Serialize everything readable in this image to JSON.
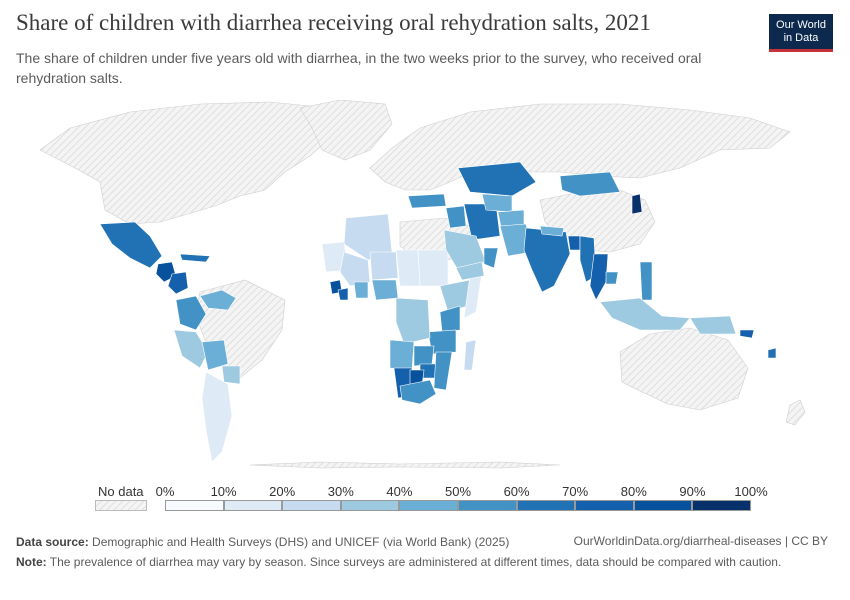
{
  "header": {
    "title": "Share of children with diarrhea receiving oral rehydration salts, 2021",
    "subtitle": "The share of children under five years old with diarrhea, in the two weeks prior to the survey, who received oral rehydration salts."
  },
  "logo": {
    "line1": "Our World",
    "line2": "in Data"
  },
  "legend": {
    "no_data_label": "No data",
    "ticks": [
      "0%",
      "10%",
      "20%",
      "30%",
      "40%",
      "50%",
      "60%",
      "70%",
      "80%",
      "90%",
      "100%"
    ],
    "colors": [
      "#f7fbff",
      "#deebf7",
      "#c6dbef",
      "#9ecae1",
      "#6baed6",
      "#4292c6",
      "#2171b5",
      "#1560ad",
      "#08519c",
      "#08306b"
    ]
  },
  "footer": {
    "source_label": "Data source:",
    "source_text": "Demographic and Health Surveys (DHS) and UNICEF (via World Bank) (2025)",
    "url_text": "OurWorldinData.org/diarrheal-diseases | CC BY",
    "note_label": "Note:",
    "note_text": "The prevalence of diarrhea may vary by season. Since surveys are administered at different times, data should be compared with caution."
  },
  "chart_data": {
    "type": "choropleth",
    "unit": "%",
    "scale_range": [
      0,
      100
    ],
    "no_data_style": "hatched light gray",
    "approximate_values": [
      {
        "region": "Mexico",
        "value": 65
      },
      {
        "region": "Guatemala",
        "value": 85
      },
      {
        "region": "Honduras",
        "value": 70
      },
      {
        "region": "Cuba",
        "value": 60
      },
      {
        "region": "Colombia",
        "value": 50
      },
      {
        "region": "Venezuela",
        "value": 45
      },
      {
        "region": "Peru",
        "value": 30
      },
      {
        "region": "Bolivia",
        "value": 40
      },
      {
        "region": "Paraguay",
        "value": 30
      },
      {
        "region": "Argentina",
        "value": 15
      },
      {
        "region": "Algeria",
        "value": 25
      },
      {
        "region": "Mauritania",
        "value": 15
      },
      {
        "region": "Mali",
        "value": 20
      },
      {
        "region": "Niger",
        "value": 25
      },
      {
        "region": "Chad",
        "value": 15
      },
      {
        "region": "Sudan",
        "value": 15
      },
      {
        "region": "Nigeria",
        "value": 40
      },
      {
        "region": "Ghana",
        "value": 45
      },
      {
        "region": "Sierra Leone",
        "value": 80
      },
      {
        "region": "Liberia",
        "value": 70
      },
      {
        "region": "Ethiopia",
        "value": 30
      },
      {
        "region": "Somalia",
        "value": 10
      },
      {
        "region": "Kenya",
        "value": 55
      },
      {
        "region": "Tanzania",
        "value": 50
      },
      {
        "region": "DR Congo",
        "value": 30
      },
      {
        "region": "Angola",
        "value": 40
      },
      {
        "region": "Zambia",
        "value": 55
      },
      {
        "region": "Zimbabwe",
        "value": 65
      },
      {
        "region": "Mozambique",
        "value": 50
      },
      {
        "region": "Madagascar",
        "value": 20
      },
      {
        "region": "Namibia",
        "value": 70
      },
      {
        "region": "Botswana",
        "value": 85
      },
      {
        "region": "South Africa",
        "value": 55
      },
      {
        "region": "Turkey",
        "value": 50
      },
      {
        "region": "Iraq",
        "value": 50
      },
      {
        "region": "Iran",
        "value": 60
      },
      {
        "region": "Saudi Arabia",
        "value": 30
      },
      {
        "region": "Yemen",
        "value": 30
      },
      {
        "region": "Oman",
        "value": 55
      },
      {
        "region": "Kazakhstan",
        "value": 65
      },
      {
        "region": "Uzbekistan",
        "value": 45
      },
      {
        "region": "Afghanistan",
        "value": 40
      },
      {
        "region": "Pakistan",
        "value": 40
      },
      {
        "region": "India",
        "value": 60
      },
      {
        "region": "Nepal",
        "value": 45
      },
      {
        "region": "Bangladesh",
        "value": 75
      },
      {
        "region": "Myanmar",
        "value": 60
      },
      {
        "region": "Thailand",
        "value": 70
      },
      {
        "region": "Cambodia",
        "value": 50
      },
      {
        "region": "Mongolia",
        "value": 50
      },
      {
        "region": "North Korea",
        "value": 90
      },
      {
        "region": "Philippines",
        "value": 50
      },
      {
        "region": "Indonesia",
        "value": 35
      },
      {
        "region": "Papua New Guinea",
        "value": 30
      }
    ]
  }
}
